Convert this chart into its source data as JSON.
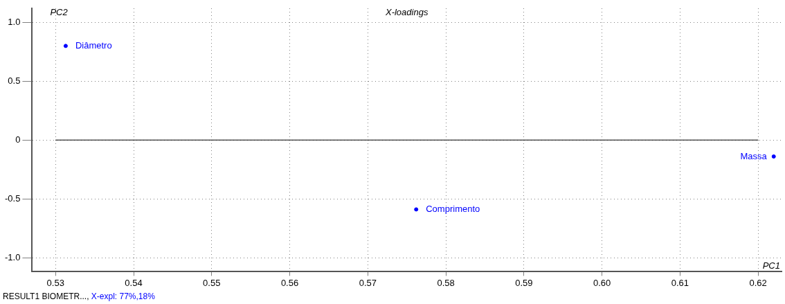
{
  "chart_data": {
    "type": "scatter",
    "title": "X-loadings",
    "xlabel": "PC1",
    "ylabel": "PC2",
    "series": [
      {
        "name": "Diâmetro",
        "color": "#0000ff",
        "x": [
          0.5313
        ],
        "values": [
          0.8
        ]
      },
      {
        "name": "Comprimento",
        "color": "#0000ff",
        "x": [
          0.5762
        ],
        "values": [
          -0.59
        ]
      },
      {
        "name": "Massa",
        "color": "#0000ff",
        "x": [
          0.622
        ],
        "values": [
          -0.14
        ]
      }
    ],
    "xlim": [
      0.527,
      0.623
    ],
    "ylim": [
      -1.12,
      1.12
    ],
    "xticks": [
      0.53,
      0.54,
      0.55,
      0.56,
      0.57,
      0.58,
      0.59,
      {
        "value": 0.6,
        "label": "0.60"
      },
      0.61,
      0.62
    ],
    "yticks": [
      {
        "value": -1,
        "label": "-1.0"
      },
      -0.5,
      0,
      0.5,
      {
        "value": 1,
        "label": "1.0"
      }
    ],
    "ref_lines": [
      {
        "axis": "y",
        "value": 0,
        "color": "#000000"
      }
    ],
    "grid": true,
    "marker": "circle",
    "legend": false,
    "annotations": [
      "RESULT1  BIOMETR...,",
      "X-expl: 77%,18%"
    ]
  }
}
